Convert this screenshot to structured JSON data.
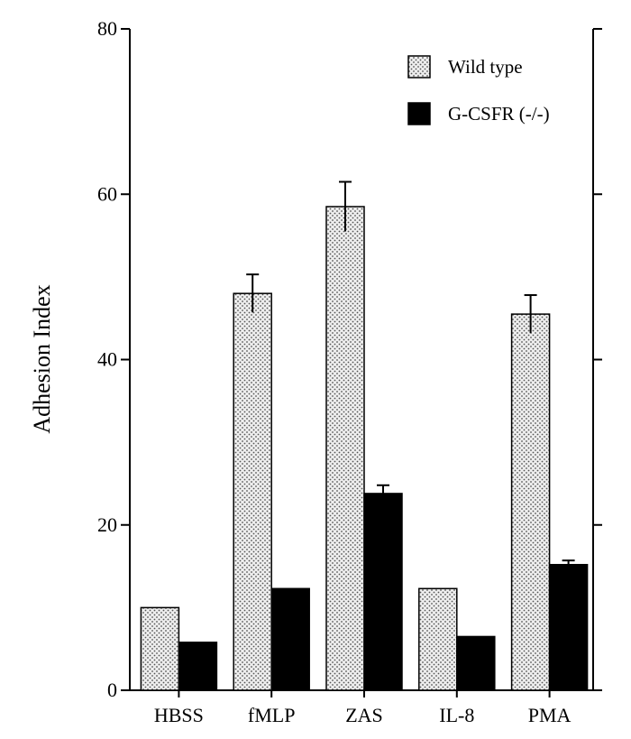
{
  "chart_data": {
    "type": "bar",
    "title": "",
    "xlabel": "",
    "ylabel": "Adhesion Index",
    "ylim": [
      0,
      80
    ],
    "yticks": [
      0,
      20,
      40,
      60,
      80
    ],
    "grid": false,
    "legend_position": "top-right",
    "categories": [
      "HBSS",
      "fMLP",
      "ZAS",
      "IL-8",
      "PMA"
    ],
    "series": [
      {
        "name": "Wild type",
        "pattern": "dotted",
        "fill": "#e6e6e6",
        "values": [
          10,
          48,
          58.5,
          12.3,
          45.5
        ],
        "errors": [
          null,
          2.3,
          3,
          null,
          2.3
        ]
      },
      {
        "name": "G-CSFR (-/-)",
        "pattern": "solid",
        "fill": "#000000",
        "values": [
          5.8,
          12.3,
          23.8,
          6.5,
          15.2
        ],
        "errors": [
          null,
          null,
          1,
          null,
          0.5
        ]
      }
    ]
  }
}
